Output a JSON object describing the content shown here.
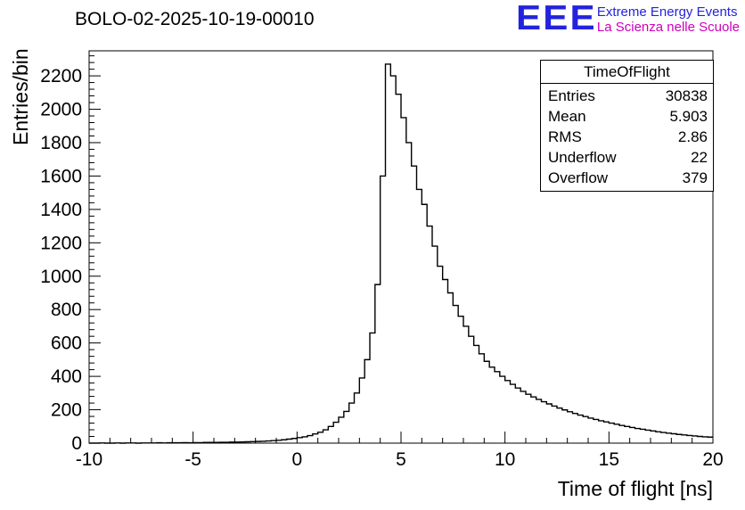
{
  "header": {
    "title": "BOLO-02-2025-10-19-00010"
  },
  "logo": {
    "letters": "EEE",
    "line1": "Extreme Energy Events",
    "line2": "La Scienza nelle Scuole",
    "blue": "#2323dd",
    "magenta": "#cc00bb"
  },
  "stats": {
    "header": "TimeOfFlight",
    "rows": [
      {
        "label": "Entries",
        "value": "30838"
      },
      {
        "label": "Mean",
        "value": "5.903"
      },
      {
        "label": "RMS",
        "value": "2.86"
      },
      {
        "label": "Underflow",
        "value": "22"
      },
      {
        "label": "Overflow",
        "value": "379"
      }
    ]
  },
  "chart_data": {
    "type": "bar",
    "subtype": "step-histogram",
    "title": "BOLO-02-2025-10-19-00010",
    "xlabel": "Time of flight [ns]",
    "ylabel": "Entries/bin",
    "xlim": [
      -10,
      20
    ],
    "ylim": [
      0,
      2350
    ],
    "x_ticks": [
      -10,
      -5,
      0,
      5,
      10,
      15,
      20
    ],
    "y_ticks": [
      0,
      200,
      400,
      600,
      800,
      1000,
      1200,
      1400,
      1600,
      1800,
      2000,
      2200
    ],
    "x_minor_step": 1,
    "y_minor_step": 40,
    "grid": false,
    "legend": "none",
    "line_color": "#000000",
    "bin_start": -10,
    "bin_width": 0.25,
    "counts": [
      0,
      0,
      1,
      0,
      0,
      1,
      0,
      1,
      1,
      0,
      1,
      1,
      1,
      2,
      1,
      2,
      2,
      2,
      3,
      2,
      3,
      3,
      4,
      4,
      4,
      5,
      5,
      6,
      6,
      7,
      8,
      9,
      10,
      11,
      13,
      15,
      17,
      20,
      24,
      28,
      33,
      38,
      45,
      55,
      65,
      80,
      100,
      125,
      155,
      190,
      240,
      300,
      390,
      500,
      660,
      950,
      1600,
      2270,
      2200,
      2090,
      1950,
      1800,
      1660,
      1520,
      1430,
      1300,
      1180,
      1060,
      980,
      900,
      825,
      760,
      700,
      640,
      585,
      535,
      490,
      455,
      428,
      400,
      375,
      352,
      330,
      310,
      293,
      277,
      262,
      248,
      235,
      222,
      210,
      199,
      188,
      178,
      168,
      159,
      150,
      142,
      134,
      127,
      120,
      113,
      106,
      100,
      94,
      88,
      83,
      78,
      73,
      68,
      64,
      60,
      56,
      52,
      49,
      46,
      43,
      40,
      38,
      36
    ],
    "stats_box": {
      "header": "TimeOfFlight",
      "entries": 30838,
      "mean": 5.903,
      "rms": 2.86,
      "underflow": 22,
      "overflow": 379
    }
  }
}
